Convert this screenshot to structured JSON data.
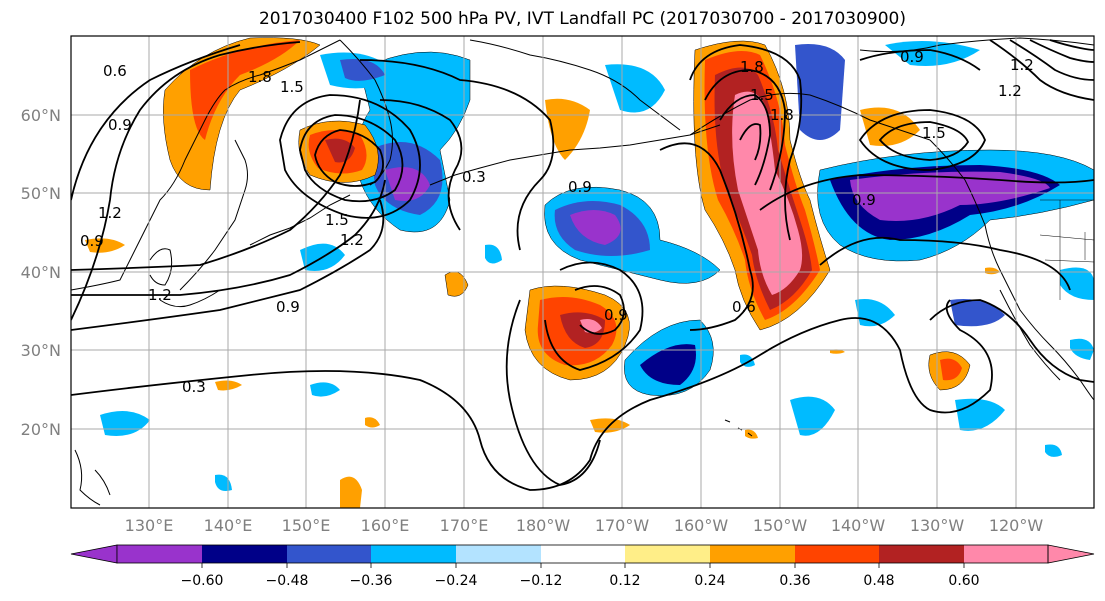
{
  "title": "2017030400 F102 500 hPa PV, IVT Landfall PC (2017030700 - 2017030900)",
  "lat_labels": [
    "60°N",
    "50°N",
    "40°N",
    "30°N",
    "20°N"
  ],
  "lon_labels": [
    "130°E",
    "140°E",
    "150°E",
    "160°E",
    "170°E",
    "180°W",
    "170°W",
    "160°W",
    "150°W",
    "140°W",
    "130°W",
    "120°W"
  ],
  "colorbar": {
    "colors": [
      "#9933cc",
      "#000088",
      "#3355cc",
      "#00bbff",
      "#b3e3ff",
      "#ffffff",
      "#ffee88",
      "#ffa000",
      "#ff4400",
      "#b22222",
      "#ff88aa"
    ],
    "tick_labels": [
      "−0.60",
      "−0.48",
      "−0.36",
      "−0.24",
      "−0.12",
      "0.12",
      "0.24",
      "0.36",
      "0.48",
      "0.60"
    ]
  },
  "contour_labels": [
    "0.6",
    "0.9",
    "1.8",
    "1.5",
    "1.2",
    "0.9",
    "1.2",
    "1.5",
    "1.2",
    "0.9",
    "0.3",
    "0.9",
    "0.6",
    "0.3",
    "0.9",
    "1.8",
    "1.5",
    "1.8",
    "0.9",
    "1.5",
    "1.2",
    "0.9",
    "1.2"
  ],
  "colors": {
    "contour": "#000000",
    "grid": "#aaaaaa",
    "coast": "#000000",
    "tick_label": "#808080"
  }
}
